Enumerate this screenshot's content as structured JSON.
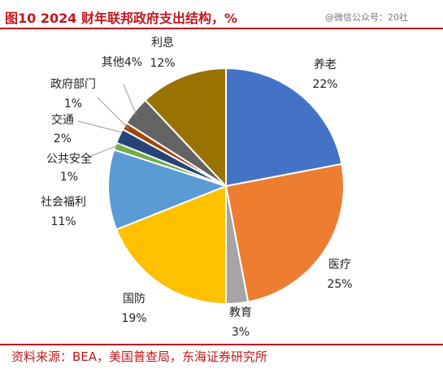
{
  "header": {
    "title": "图10  2024 财年联邦政府支出结构，%",
    "watermark": "@微信公众号：20社"
  },
  "footer": {
    "source": "资料来源：BEA，美国普查局，东海证券研究所"
  },
  "chart_data": {
    "type": "pie",
    "title": "图10  2024 财年联邦政府支出结构，%",
    "unit": "%",
    "categories": [
      "养老",
      "医疗",
      "教育",
      "国防",
      "社会福利",
      "公共安全",
      "交通",
      "政府部门",
      "其他",
      "利息"
    ],
    "values": [
      22,
      25,
      3,
      19,
      11,
      1,
      2,
      1,
      4,
      12
    ],
    "value_labels": [
      "22%",
      "25%",
      "3%",
      "19%",
      "11%",
      "1%",
      "2%",
      "1%",
      "4%",
      "12%"
    ],
    "colors": [
      "#4472C4",
      "#ED7D31",
      "#A5A5A5",
      "#FFC000",
      "#5B9BD5",
      "#70AD47",
      "#264478",
      "#9E480E",
      "#636363",
      "#997300"
    ],
    "start_angle_deg": 0,
    "direction": "clockwise",
    "legend": "none"
  }
}
